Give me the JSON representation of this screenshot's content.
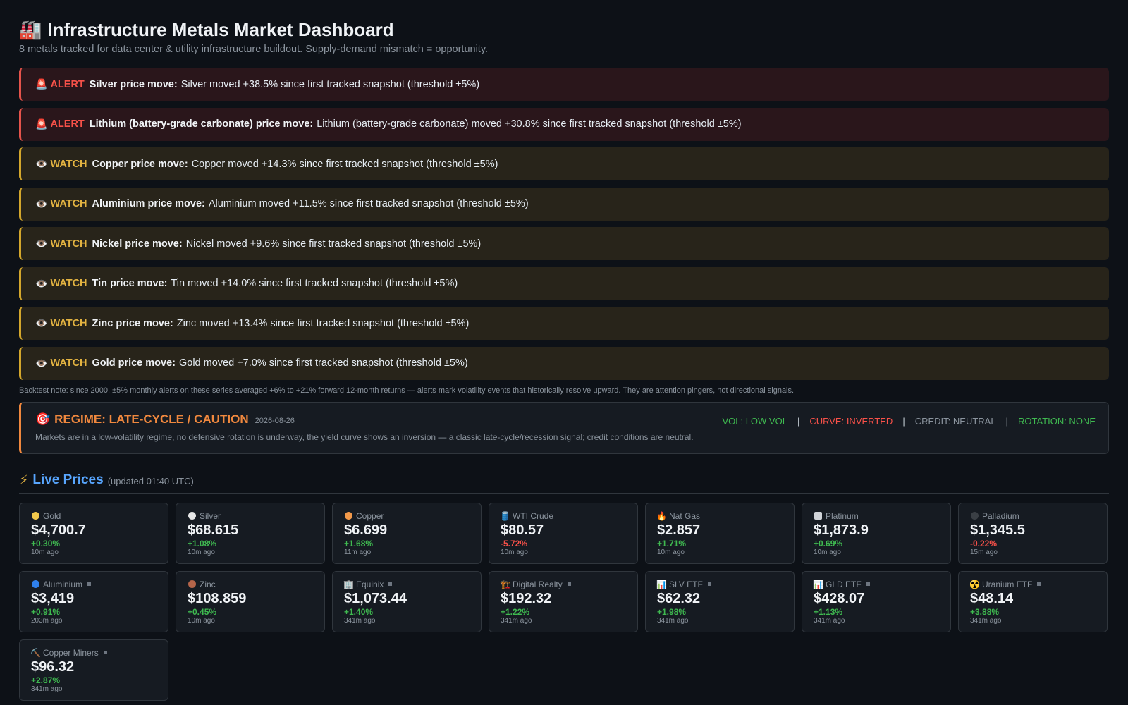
{
  "header": {
    "title": "Infrastructure Metals Market Dashboard",
    "title_icon": "factory-icon",
    "subtitle": "8 metals tracked for data center & utility infrastructure buildout. Supply-demand mismatch = opportunity."
  },
  "alerts": [
    {
      "level": "alert",
      "tag": "ALERT",
      "icon": "siren-icon",
      "headline": "Silver price move:",
      "text": "Silver moved +38.5% since first tracked snapshot (threshold ±5%)"
    },
    {
      "level": "alert",
      "tag": "ALERT",
      "icon": "siren-icon",
      "headline": "Lithium (battery-grade carbonate) price move:",
      "text": "Lithium (battery-grade carbonate) moved +30.8% since first tracked snapshot (threshold ±5%)"
    },
    {
      "level": "watch",
      "tag": "WATCH",
      "icon": "eye-icon",
      "headline": "Copper price move:",
      "text": "Copper moved +14.3% since first tracked snapshot (threshold ±5%)"
    },
    {
      "level": "watch",
      "tag": "WATCH",
      "icon": "eye-icon",
      "headline": "Aluminium price move:",
      "text": "Aluminium moved +11.5% since first tracked snapshot (threshold ±5%)"
    },
    {
      "level": "watch",
      "tag": "WATCH",
      "icon": "eye-icon",
      "headline": "Nickel price move:",
      "text": "Nickel moved +9.6% since first tracked snapshot (threshold ±5%)"
    },
    {
      "level": "watch",
      "tag": "WATCH",
      "icon": "eye-icon",
      "headline": "Tin price move:",
      "text": "Tin moved +14.0% since first tracked snapshot (threshold ±5%)"
    },
    {
      "level": "watch",
      "tag": "WATCH",
      "icon": "eye-icon",
      "headline": "Zinc price move:",
      "text": "Zinc moved +13.4% since first tracked snapshot (threshold ±5%)"
    },
    {
      "level": "watch",
      "tag": "WATCH",
      "icon": "eye-icon",
      "headline": "Gold price move:",
      "text": "Gold moved +7.0% since first tracked snapshot (threshold ±5%)"
    }
  ],
  "backtest_note": "Backtest note: since 2000, ±5% monthly alerts on these series averaged +6% to +21% forward 12-month returns — alerts mark volatility events that historically resolve upward. They are attention pingers, not directional signals.",
  "regime": {
    "icon": "target-icon",
    "title": "REGIME: LATE-CYCLE / CAUTION",
    "date": "2026-08-26",
    "indicators": [
      {
        "label": "VOL: LOW VOL",
        "tone": "green"
      },
      {
        "label": "CURVE: INVERTED",
        "tone": "red"
      },
      {
        "label": "CREDIT: NEUTRAL",
        "tone": "gray"
      },
      {
        "label": "ROTATION: NONE",
        "tone": "green"
      }
    ],
    "separator": "|",
    "description": "Markets are in a low-volatility regime, no defensive rotation is underway, the yield curve shows an inversion — a classic late-cycle/recession signal; credit conditions are neutral."
  },
  "live_prices": {
    "title": "Live Prices",
    "icon": "lightning-icon",
    "updated": "(updated 01:40 UTC)",
    "cards": [
      {
        "name": "Gold",
        "icon": "gold-dot-icon",
        "icon_color": "#f2c94c",
        "price": "$4,700.7",
        "change": "+0.30%",
        "direction": "up",
        "age": "10m ago",
        "stale": false
      },
      {
        "name": "Silver",
        "icon": "silver-dot-icon",
        "icon_color": "#e6e6e6",
        "price": "$68.615",
        "change": "+1.08%",
        "direction": "up",
        "age": "10m ago",
        "stale": false
      },
      {
        "name": "Copper",
        "icon": "copper-dot-icon",
        "icon_color": "#f2994a",
        "price": "$6.699",
        "change": "+1.68%",
        "direction": "up",
        "age": "11m ago",
        "stale": false
      },
      {
        "name": "WTI Crude",
        "icon": "oil-barrel-icon",
        "icon_color": "#4a90d9",
        "price": "$80.57",
        "change": "-5.72%",
        "direction": "down",
        "age": "10m ago",
        "stale": false
      },
      {
        "name": "Nat Gas",
        "icon": "fire-icon",
        "icon_color": "#f2711c",
        "price": "$2.857",
        "change": "+1.71%",
        "direction": "up",
        "age": "10m ago",
        "stale": false
      },
      {
        "name": "Platinum",
        "icon": "white-square-icon",
        "icon_color": "#d0d4d9",
        "price": "$1,873.9",
        "change": "+0.69%",
        "direction": "up",
        "age": "10m ago",
        "stale": false
      },
      {
        "name": "Palladium",
        "icon": "black-dot-icon",
        "icon_color": "#3a3f45",
        "price": "$1,345.5",
        "change": "-0.22%",
        "direction": "down",
        "age": "15m ago",
        "stale": false
      },
      {
        "name": "Aluminium",
        "icon": "blue-dot-icon",
        "icon_color": "#2f80ed",
        "price": "$3,419",
        "change": "+0.91%",
        "direction": "up",
        "age": "203m ago",
        "stale": true
      },
      {
        "name": "Zinc",
        "icon": "brown-dot-icon",
        "icon_color": "#b5654a",
        "price": "$108.859",
        "change": "+0.45%",
        "direction": "up",
        "age": "10m ago",
        "stale": false
      },
      {
        "name": "Equinix",
        "icon": "office-building-icon",
        "icon_color": "#9aa4ae",
        "price": "$1,073.44",
        "change": "+1.40%",
        "direction": "up",
        "age": "341m ago",
        "stale": true
      },
      {
        "name": "Digital Realty",
        "icon": "construction-crane-icon",
        "icon_color": "#e3a03d",
        "price": "$192.32",
        "change": "+1.22%",
        "direction": "up",
        "age": "341m ago",
        "stale": true
      },
      {
        "name": "SLV ETF",
        "icon": "bar-chart-icon",
        "icon_color": "#58a6ff",
        "price": "$62.32",
        "change": "+1.98%",
        "direction": "up",
        "age": "341m ago",
        "stale": true
      },
      {
        "name": "GLD ETF",
        "icon": "bar-chart-icon",
        "icon_color": "#58a6ff",
        "price": "$428.07",
        "change": "+1.13%",
        "direction": "up",
        "age": "341m ago",
        "stale": true
      },
      {
        "name": "Uranium ETF",
        "icon": "radioactive-icon",
        "icon_color": "#f2c94c",
        "price": "$48.14",
        "change": "+3.88%",
        "direction": "up",
        "age": "341m ago",
        "stale": true
      },
      {
        "name": "Copper Miners",
        "icon": "pickaxe-icon",
        "icon_color": "#9aa4ae",
        "price": "$96.32",
        "change": "+2.87%",
        "direction": "up",
        "age": "341m ago",
        "stale": true
      }
    ]
  }
}
